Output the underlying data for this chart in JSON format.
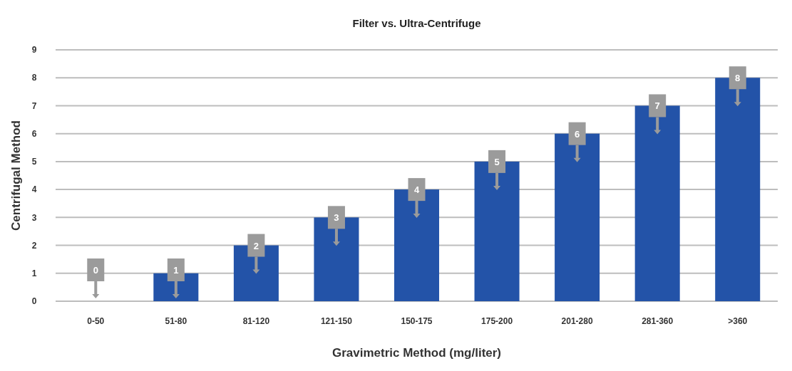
{
  "chart_data": {
    "type": "bar",
    "title": "Filter vs. Ultra-Centrifuge",
    "xlabel": "Gravimetric Method (mg/liter)",
    "ylabel": "Centrifugal Method",
    "categories": [
      "0-50",
      "51-80",
      "81-120",
      "121-150",
      "150-175",
      "175-200",
      "201-280",
      "281-360",
      ">360"
    ],
    "series": [
      {
        "color": "#2353a8",
        "values": [
          0,
          1,
          2,
          3,
          4,
          5,
          6,
          7,
          8
        ]
      }
    ],
    "ylim": [
      0,
      9
    ],
    "yticks": [
      0,
      1,
      2,
      3,
      4,
      5,
      6,
      7,
      8,
      9
    ],
    "grid": "y",
    "data_labels": true
  }
}
